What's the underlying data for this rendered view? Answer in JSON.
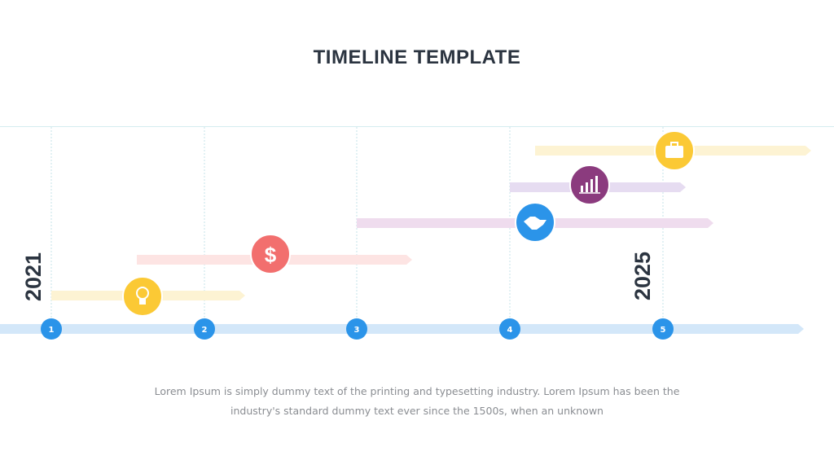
{
  "header": {
    "title": "TIMELINE TEMPLATE"
  },
  "years": [
    "2021",
    "2025"
  ],
  "markers": [
    "1",
    "2",
    "3",
    "4",
    "5"
  ],
  "description": [
    "Lorem Ipsum is simply dummy text of the printing and typesetting industry. Lorem Ipsum has been the",
    "industry's standard dummy text ever since the 1500s, when an unknown"
  ]
}
